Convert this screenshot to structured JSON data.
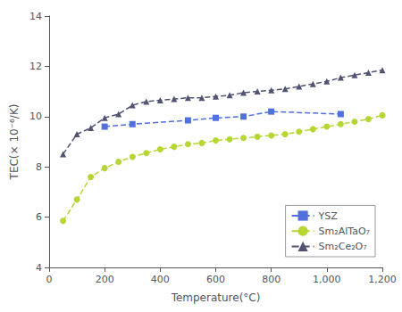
{
  "chart_data": {
    "type": "line",
    "xlabel": "Temperature(°C)",
    "ylabel": "TEC(× 10⁻⁶/K)",
    "xlim": [
      0,
      1200
    ],
    "ylim": [
      4,
      14
    ],
    "xticks": [
      0,
      200,
      400,
      600,
      800,
      1000,
      1200
    ],
    "yticks": [
      4,
      6,
      8,
      10,
      12,
      14
    ],
    "grid": false,
    "legend": "lower right",
    "series": [
      {
        "name": "YSZ",
        "marker": "square",
        "line_style": "dashed",
        "x": [
          200,
          300,
          500,
          600,
          700,
          800,
          1050
        ],
        "values": [
          9.6,
          9.7,
          9.85,
          9.95,
          10.0,
          10.2,
          10.1
        ]
      },
      {
        "name": "Sm₂AlTaO₇",
        "marker": "circle",
        "line_style": "dashed",
        "x": [
          50,
          100,
          150,
          200,
          250,
          300,
          350,
          400,
          450,
          500,
          550,
          600,
          650,
          700,
          750,
          800,
          850,
          900,
          950,
          1000,
          1050,
          1100,
          1150,
          1200
        ],
        "values": [
          5.85,
          6.7,
          7.6,
          7.95,
          8.2,
          8.4,
          8.55,
          8.7,
          8.8,
          8.9,
          8.95,
          9.05,
          9.1,
          9.15,
          9.2,
          9.25,
          9.3,
          9.4,
          9.5,
          9.6,
          9.7,
          9.8,
          9.9,
          10.05
        ]
      },
      {
        "name": "Sm₂Ce₂O₇",
        "marker": "triangle",
        "line_style": "dashed",
        "x": [
          50,
          100,
          150,
          200,
          250,
          300,
          350,
          400,
          450,
          500,
          550,
          600,
          650,
          700,
          750,
          800,
          850,
          900,
          950,
          1000,
          1050,
          1100,
          1150,
          1200
        ],
        "values": [
          8.5,
          9.3,
          9.55,
          9.95,
          10.1,
          10.45,
          10.6,
          10.65,
          10.7,
          10.75,
          10.75,
          10.8,
          10.85,
          10.95,
          11.0,
          11.05,
          11.1,
          11.2,
          11.3,
          11.4,
          11.55,
          11.65,
          11.75,
          11.85
        ]
      }
    ]
  }
}
